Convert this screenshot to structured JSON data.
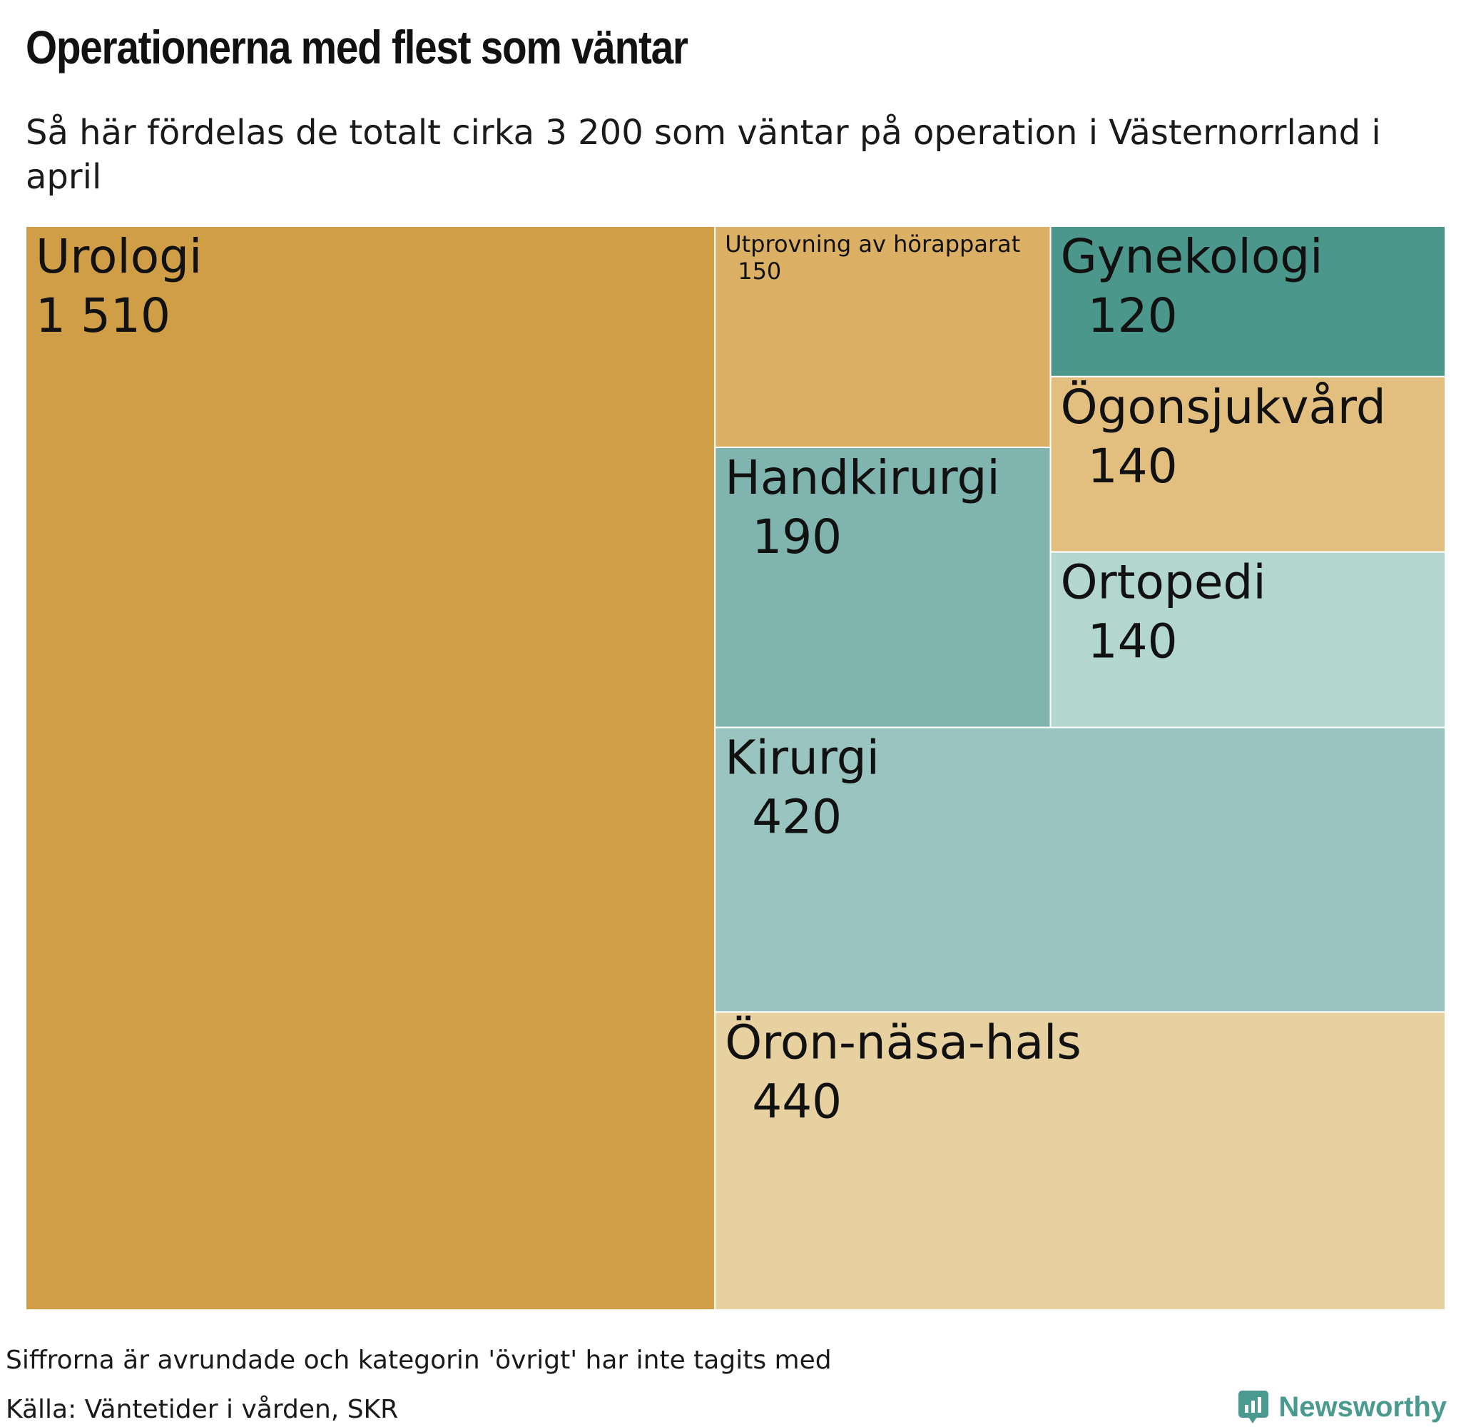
{
  "title": "Operationerna med flest som väntar",
  "subtitle": "Så här fördelas de totalt cirka 3 200 som väntar på operation i Västernorrland i april",
  "note": "Siffrorna är avrundade och kategorin 'övrigt' har inte tagits med",
  "source": "Källa: Väntetider i vården, SKR",
  "brand": {
    "name": "Newsworthy",
    "icon": "bar-chart-speech-bubble-icon",
    "color": "#4b9a8f"
  },
  "chart_data": {
    "type": "treemap",
    "title": "Operationerna med flest som väntar",
    "unit": "antal väntande",
    "items": [
      {
        "name": "Urologi",
        "value_label": "1 510",
        "value": 1510,
        "color": "#d09e47"
      },
      {
        "name": "Öron-näsa-hals",
        "value_label": "440",
        "value": 440,
        "color": "#e8d1a0"
      },
      {
        "name": "Kirurgi",
        "value_label": "420",
        "value": 420,
        "color": "#9ac4bf"
      },
      {
        "name": "Handkirurgi",
        "value_label": "190",
        "value": 190,
        "color": "#7fb5ae"
      },
      {
        "name": "Utprovning av hörapparat",
        "value_label": "150",
        "value": 150,
        "color": "#dbb065"
      },
      {
        "name": "Ögonsjukvård",
        "value_label": "140",
        "value": 140,
        "color": "#e3bf7f"
      },
      {
        "name": "Ortopedi",
        "value_label": "140",
        "value": 140,
        "color": "#b3d6cf"
      },
      {
        "name": "Gynekologi",
        "value_label": "120",
        "value": 120,
        "color": "#4c978b"
      }
    ]
  }
}
